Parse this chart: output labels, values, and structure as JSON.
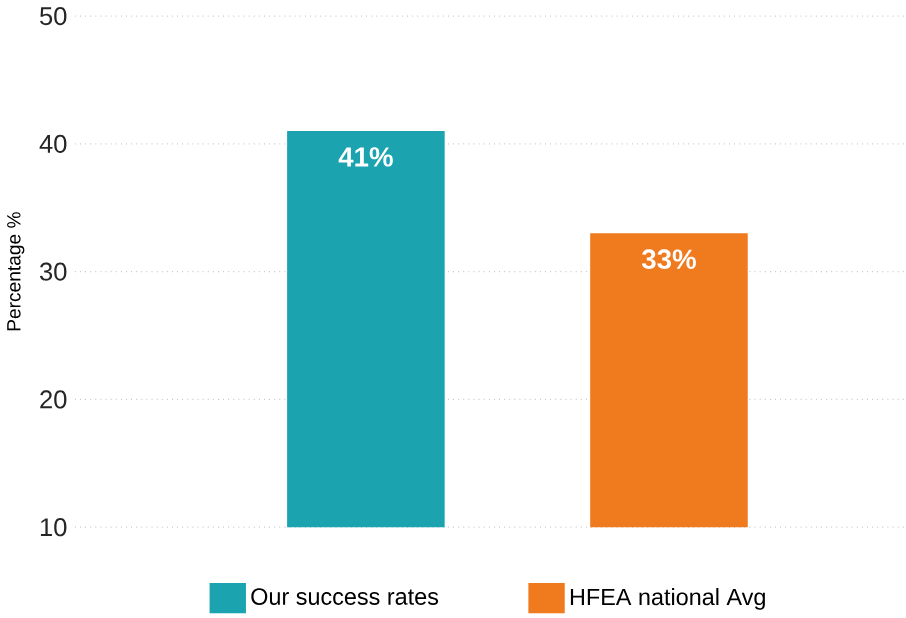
{
  "chart_data": {
    "type": "bar",
    "ylabel": "Percentage %",
    "categories": [
      null,
      null
    ],
    "series": [
      {
        "name": "Our success rates",
        "color": "#1ba3b0",
        "values": [
          41,
          null
        ],
        "value_labels": [
          "41%",
          null
        ]
      },
      {
        "name": "HFEA national Avg",
        "color": "#f07a1e",
        "values": [
          null,
          33
        ],
        "value_labels": [
          null,
          "33%"
        ]
      }
    ],
    "ylim": [
      10,
      50
    ],
    "yticks": [
      10,
      20,
      30,
      40,
      50
    ],
    "grid": "y",
    "legend": "bottom"
  }
}
